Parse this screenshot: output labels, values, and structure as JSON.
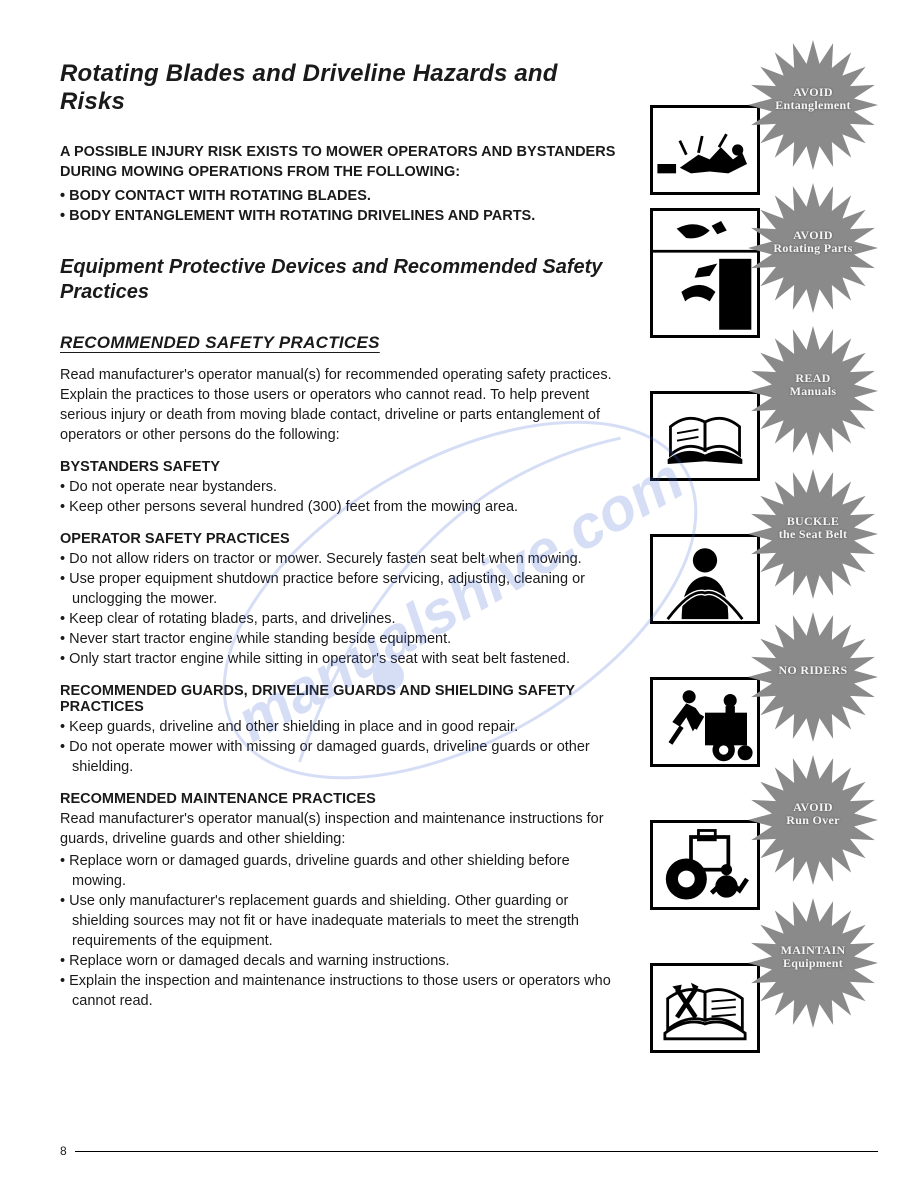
{
  "title": "Rotating Blades and Driveline Hazards and Risks",
  "intro_bold": "A POSSIBLE INJURY RISK EXISTS TO MOWER OPERATORS AND BYSTANDERS DURING MOWING OPERATIONS FROM THE FOLLOWING:",
  "intro_bullets": [
    "BODY CONTACT WITH ROTATING BLADES.",
    "BODY ENTANGLEMENT WITH ROTATING DRIVELINES AND PARTS."
  ],
  "subtitle": "Equipment Protective Devices and Recommended Safety Practices",
  "practices_heading": "RECOMMENDED SAFETY PRACTICES",
  "practices_intro": "Read manufacturer's operator manual(s) for recommended operating safety practices. Explain the practices to those users or operators who cannot read. To help prevent serious injury or death from moving blade contact, driveline or parts entanglement of operators or other persons do the following:",
  "sections": [
    {
      "heading": "BYSTANDERS SAFETY",
      "intro": "",
      "bullets": [
        "Do not operate near bystanders.",
        "Keep other persons several hundred (300) feet from the mowing area."
      ]
    },
    {
      "heading": "OPERATOR SAFETY PRACTICES",
      "intro": "",
      "bullets": [
        "Do not allow riders on tractor or mower. Securely fasten seat belt when mowing.",
        "Use proper equipment shutdown practice before servicing, adjusting, cleaning or unclogging the mower.",
        "Keep clear of rotating blades, parts, and drivelines.",
        "Never start tractor engine while standing beside equipment.",
        "Only start tractor engine while sitting in operator's seat with seat belt fastened."
      ]
    },
    {
      "heading": "RECOMMENDED GUARDS, DRIVELINE GUARDS AND SHIELDING SAFETY PRACTICES",
      "intro": "",
      "bullets": [
        "Keep guards, driveline and other shielding in place and in good repair.",
        "Do not operate mower with missing or damaged guards, driveline guards or other shielding."
      ]
    },
    {
      "heading": "RECOMMENDED MAINTENANCE PRACTICES",
      "intro": "Read manufacturer's operator manual(s) inspection and maintenance instructions for guards, driveline guards and other shielding:",
      "bullets": [
        "Replace worn or damaged guards, driveline guards and other shielding before mowing.",
        "Use only manufacturer's replacement guards and shielding. Other guarding or shielding sources may not fit or have inadequate materials to meet the strength requirements of the equipment.",
        "Replace worn or damaged decals and warning instructions.",
        "Explain the inspection and maintenance instructions to those users or operators who cannot read."
      ]
    }
  ],
  "badges": [
    {
      "line1": "AVOID",
      "line2": "Entanglement",
      "icon": "entangle"
    },
    {
      "line1": "AVOID",
      "line2": "Rotating Parts",
      "icon": "rotating"
    },
    {
      "line1": "READ",
      "line2": "Manuals",
      "icon": "manual"
    },
    {
      "line1": "BUCKLE",
      "line2": "the Seat Belt",
      "icon": "seatbelt"
    },
    {
      "line1": "NO RIDERS",
      "line2": "",
      "icon": "noriders"
    },
    {
      "line1": "AVOID",
      "line2": "Run Over",
      "icon": "runover"
    },
    {
      "line1": "MAINTAIN",
      "line2": "Equipment",
      "icon": "maintain"
    }
  ],
  "burst_fill": "#8a8a8a",
  "page_number": "8"
}
